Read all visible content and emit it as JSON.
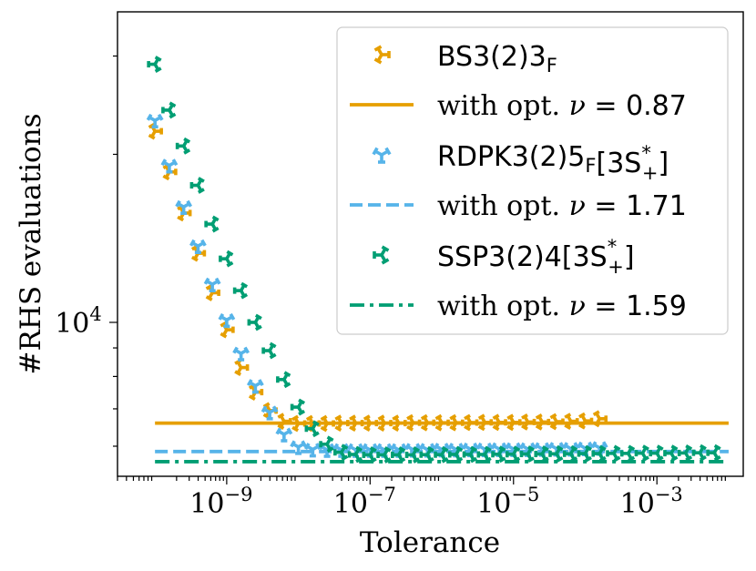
{
  "chart_data": {
    "type": "scatter",
    "xlabel": "Tolerance",
    "ylabel": "#RHS evaluations",
    "xscale": "log",
    "yscale": "log",
    "xlim": [
      3e-11,
      0.016
    ],
    "ylim": [
      5300,
      36000
    ],
    "x_ticks": [
      {
        "value": 1e-09,
        "base": "10",
        "exp": "−9"
      },
      {
        "value": 1e-07,
        "base": "10",
        "exp": "−7"
      },
      {
        "value": 1e-05,
        "base": "10",
        "exp": "−5"
      },
      {
        "value": 0.001,
        "base": "10",
        "exp": "−3"
      }
    ],
    "y_ticks": [
      {
        "value": 10000,
        "base": "10",
        "exp": "4"
      }
    ],
    "y_minor_ticks": [
      6000,
      7000,
      8000,
      9000,
      20000,
      30000
    ],
    "x_minor_ticks": [
      3e-11,
      4e-11,
      5e-11,
      6e-11,
      7e-11,
      8e-11,
      9e-11,
      2e-10,
      3e-10,
      4e-10,
      5e-10,
      6e-10,
      7e-10,
      8e-10,
      9e-10,
      2e-09,
      3e-09,
      4e-09,
      5e-09,
      6e-09,
      7e-09,
      8e-09,
      9e-09,
      2e-08,
      3e-08,
      4e-08,
      5e-08,
      6e-08,
      7e-08,
      8e-08,
      9e-08,
      2e-07,
      3e-07,
      4e-07,
      5e-07,
      6e-07,
      7e-07,
      8e-07,
      9e-07,
      2e-06,
      3e-06,
      4e-06,
      5e-06,
      6e-06,
      7e-06,
      8e-06,
      9e-06,
      2e-05,
      3e-05,
      4e-05,
      5e-05,
      6e-05,
      7e-05,
      8e-05,
      9e-05,
      0.0002,
      0.0003,
      0.0004,
      0.0005,
      0.0006,
      0.0007,
      0.0008,
      0.0009,
      0.002,
      0.003,
      0.004,
      0.005,
      0.006,
      0.007,
      0.008,
      0.009
    ],
    "series": [
      {
        "name": "BS3(2)3",
        "name_sub": "F",
        "name_sup": "",
        "name_suffix": "",
        "color": "#e69f00",
        "marker": "tri_right",
        "x": [
          1e-10,
          1.585e-10,
          2.512e-10,
          3.981e-10,
          6.31e-10,
          1e-09,
          1.585e-09,
          2.512e-09,
          3.981e-09,
          6.31e-09,
          1e-08,
          1.585e-08,
          2.512e-08,
          3.981e-08,
          6.31e-08,
          1e-07,
          1.585e-07,
          2.512e-07,
          3.981e-07,
          6.31e-07,
          1e-06,
          1.585e-06,
          2.512e-06,
          3.981e-06,
          6.31e-06,
          1e-05,
          1.585e-05,
          2.512e-05,
          3.981e-05,
          6.31e-05,
          0.0001,
          0.0001585
        ],
        "y": [
          22000,
          18600,
          15700,
          13300,
          11300,
          9700,
          8300,
          7500,
          6950,
          6650,
          6590,
          6590,
          6590,
          6600,
          6600,
          6600,
          6600,
          6600,
          6610,
          6610,
          6610,
          6610,
          6615,
          6620,
          6620,
          6620,
          6630,
          6630,
          6640,
          6650,
          6660,
          6720
        ]
      },
      {
        "name": "RDPK3(2)5",
        "name_sub": "F",
        "name_sup": "*",
        "name_suffix": "[3S",
        "color": "#56b4e9",
        "marker": "tri_down",
        "x": [
          1e-10,
          1.585e-10,
          2.512e-10,
          3.981e-10,
          6.31e-10,
          1e-09,
          1.585e-09,
          2.512e-09,
          3.981e-09,
          6.31e-09,
          1e-08,
          1.585e-08,
          2.512e-08,
          3.981e-08,
          6.31e-08,
          1e-07,
          1.585e-07,
          2.512e-07,
          3.981e-07,
          6.31e-07,
          1e-06,
          1.585e-06,
          2.512e-06,
          3.981e-06,
          6.31e-06,
          1e-05,
          1.585e-05,
          2.512e-05,
          3.981e-05,
          6.31e-05,
          0.0001,
          0.0001585
        ],
        "y": [
          23000,
          19100,
          16100,
          13700,
          11700,
          10100,
          8800,
          7700,
          6900,
          6300,
          5980,
          5920,
          5910,
          5910,
          5910,
          5910,
          5910,
          5910,
          5915,
          5915,
          5920,
          5920,
          5925,
          5925,
          5930,
          5930,
          5930,
          5935,
          5940,
          5940,
          5950,
          5960
        ]
      },
      {
        "name": "SSP3(2)4",
        "name_sub": "",
        "name_sup": "*",
        "name_suffix": "[3S",
        "color": "#009e73",
        "marker": "tri_left",
        "x": [
          1e-10,
          1.585e-10,
          2.512e-10,
          3.981e-10,
          6.31e-10,
          1e-09,
          1.585e-09,
          2.512e-09,
          3.981e-09,
          6.31e-09,
          1e-08,
          1.585e-08,
          2.512e-08,
          3.981e-08,
          6.31e-08,
          1e-07,
          1.585e-07,
          2.512e-07,
          3.981e-07,
          6.31e-07,
          1e-06,
          1.585e-06,
          2.512e-06,
          3.981e-06,
          6.31e-06,
          1e-05,
          1.585e-05,
          2.512e-05,
          3.981e-05,
          6.31e-05,
          0.0001,
          0.0001585,
          0.0002512,
          0.0003981,
          0.000631,
          0.001,
          0.001585,
          0.002512,
          0.003981,
          0.00631
        ],
        "y": [
          29000,
          24000,
          20700,
          17600,
          15000,
          13000,
          11400,
          10000,
          8900,
          7900,
          7050,
          6450,
          6050,
          5850,
          5800,
          5790,
          5790,
          5790,
          5790,
          5795,
          5795,
          5800,
          5800,
          5800,
          5805,
          5805,
          5810,
          5810,
          5815,
          5815,
          5820,
          5820,
          5825,
          5825,
          5830,
          5830,
          5830,
          5835,
          5840,
          5840
        ]
      }
    ],
    "lines": [
      {
        "label_prefix": "with opt. ",
        "label_nu": "ν",
        "label_eq": " = ",
        "label_value": "0.87",
        "y": 6600,
        "color": "#e69f00",
        "style": "solid",
        "x_from": 1e-10,
        "x_to": 0.01
      },
      {
        "label_prefix": "with opt. ",
        "label_nu": "ν",
        "label_eq": " = ",
        "label_value": "1.71",
        "y": 5870,
        "color": "#56b4e9",
        "style": "dashed",
        "x_from": 1e-10,
        "x_to": 0.01
      },
      {
        "label_prefix": "with opt. ",
        "label_nu": "ν",
        "label_eq": " = ",
        "label_value": "1.59",
        "y": 5630,
        "color": "#009e73",
        "style": "dashdot",
        "x_from": 1e-10,
        "x_to": 0.01
      }
    ],
    "legend": {
      "position": "upper-right",
      "suffix_plus": "+",
      "suffix_close": "]",
      "order": [
        "s0",
        "l0",
        "s1",
        "l1",
        "s2",
        "l2"
      ]
    }
  }
}
